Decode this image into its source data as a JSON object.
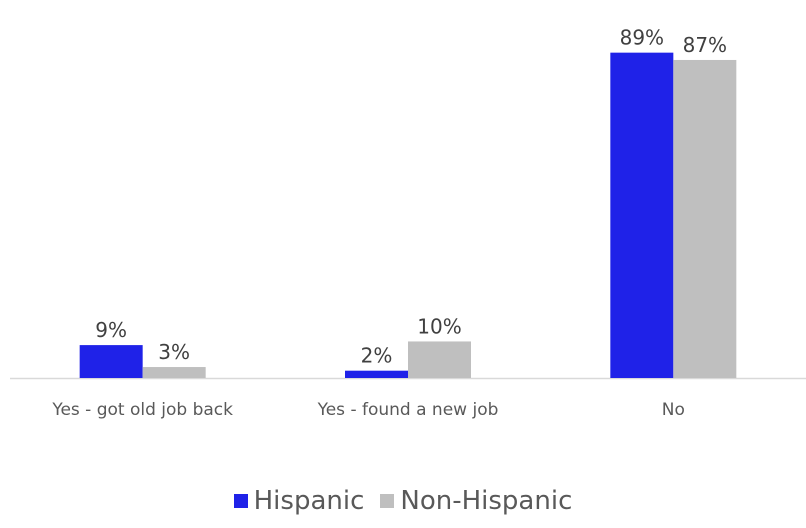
{
  "chart_data": {
    "type": "bar",
    "title": "",
    "categories": [
      "Yes - got old job back",
      "Yes - found a new job",
      "No"
    ],
    "series": [
      {
        "name": "Hispanic",
        "values": [
          9,
          2,
          89
        ],
        "labels": [
          "9%",
          "2%",
          "89%"
        ],
        "color": "#1f22e8"
      },
      {
        "name": "Non-Hispanic",
        "values": [
          3,
          10,
          87
        ],
        "labels": [
          "3%",
          "10%",
          "87%"
        ],
        "color": "#bfbfbf"
      }
    ],
    "ylim": [
      0,
      90
    ],
    "grid": false,
    "legend": "bottom"
  }
}
